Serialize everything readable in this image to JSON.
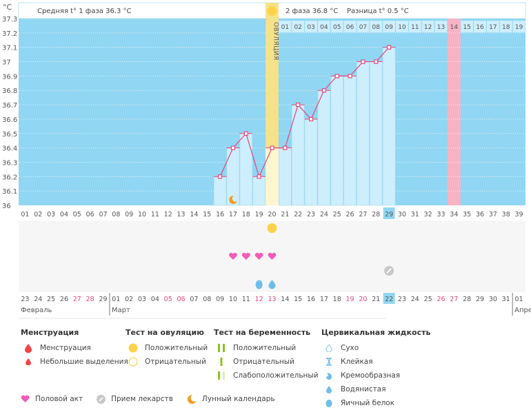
{
  "header": {
    "unit": "°C",
    "phase1_label": "Средняя t° 1 фаза 36.3 °C",
    "phase2_label": "2 фаза 36.8 °C",
    "diff_label": "Разница t° 0.5 °C",
    "ovulation_label": "ОВУЛЯЦИЯ"
  },
  "chart_data": {
    "type": "line",
    "title": "",
    "xlabel": "",
    "ylabel": "°C",
    "ylim": [
      36.0,
      37.3
    ],
    "y_ticks": [
      "37.3",
      "37.2",
      "37.1",
      "37",
      "36.9",
      "36.8",
      "36.7",
      "36.6",
      "36.5",
      "36.4",
      "36.3",
      "36.2",
      "36.1",
      "36"
    ],
    "cycle_days": [
      "01",
      "02",
      "03",
      "04",
      "05",
      "06",
      "07",
      "08",
      "09",
      "10",
      "11",
      "12",
      "13",
      "14",
      "15",
      "16",
      "17",
      "18",
      "19",
      "20",
      "21",
      "22",
      "23",
      "24",
      "25",
      "26",
      "27",
      "28",
      "29",
      "30",
      "31",
      "32",
      "33",
      "34",
      "35",
      "36",
      "37",
      "38",
      "39"
    ],
    "phase2_days": [
      "01",
      "02",
      "03",
      "04",
      "05",
      "06",
      "07",
      "08",
      "09",
      "10",
      "11",
      "12",
      "13",
      "14",
      "15",
      "16",
      "17",
      "18",
      "19"
    ],
    "calendar_dates": [
      "23",
      "24",
      "25",
      "26",
      "27",
      "28",
      "29",
      "01",
      "02",
      "03",
      "04",
      "05",
      "06",
      "07",
      "08",
      "09",
      "10",
      "11",
      "12",
      "13",
      "14",
      "15",
      "16",
      "17",
      "18",
      "19",
      "20",
      "21",
      "22",
      "23",
      "24",
      "25",
      "26",
      "27",
      "28",
      "29",
      "30",
      "31",
      "01"
    ],
    "weekend_dates_idx": [
      4,
      5,
      11,
      12,
      18,
      19,
      25,
      26,
      32,
      33
    ],
    "months": [
      {
        "label": "Февраль",
        "start_idx": 0
      },
      {
        "label": "Март",
        "start_idx": 7
      },
      {
        "label": "Апре",
        "start_idx": 38
      }
    ],
    "series": [
      {
        "name": "Базальная температура",
        "color": "#e8457a",
        "points": [
          {
            "day": 16,
            "value": 36.2
          },
          {
            "day": 17,
            "value": 36.4
          },
          {
            "day": 18,
            "value": 36.5
          },
          {
            "day": 19,
            "value": 36.2
          },
          {
            "day": 20,
            "value": 36.4
          },
          {
            "day": 21,
            "value": 36.4
          },
          {
            "day": 22,
            "value": 36.7
          },
          {
            "day": 23,
            "value": 36.6
          },
          {
            "day": 24,
            "value": 36.8
          },
          {
            "day": 25,
            "value": 36.9
          },
          {
            "day": 26,
            "value": 36.9
          },
          {
            "day": 27,
            "value": 37.0
          },
          {
            "day": 28,
            "value": 37.0
          },
          {
            "day": 29,
            "value": 37.1
          }
        ]
      }
    ],
    "ovulation_day": 20,
    "today_day": 29,
    "expected_period_day": 34,
    "markers": {
      "moon_days": [
        17
      ],
      "ovulation_test_positive_days": [
        20
      ],
      "intercourse_days": [
        17,
        18,
        19,
        20
      ],
      "medicine_days": [
        29
      ],
      "cervical_fluid": [
        {
          "day": 19,
          "type": "Яичный белок"
        },
        {
          "day": 20,
          "type": "Водянистая"
        }
      ]
    },
    "colors": {
      "background": "#91d6f2",
      "bar": "#cdeefc",
      "ovulation": "#f5e28a",
      "ovulation_low": "#fdf6cf",
      "expected_period": "#f7b3c6",
      "line": "#e8457a",
      "today": "#91d6f2",
      "weekend_text": "#e8457a"
    }
  },
  "legend": {
    "groups": [
      {
        "title": "Менструация",
        "items": [
          {
            "icon": "drop-large-red-icon",
            "label": "Менструация"
          },
          {
            "icon": "drop-small-red-icon",
            "label": "Небольшие выделения"
          }
        ]
      },
      {
        "title": "Тест на овуляцию",
        "items": [
          {
            "icon": "circle-filled-yellow-icon",
            "label": "Положительный"
          },
          {
            "icon": "circle-outline-yellow-icon",
            "label": "Отрицательный"
          }
        ]
      },
      {
        "title": "Тест на беременность",
        "items": [
          {
            "icon": "two-green-bars-icon",
            "label": "Положительный"
          },
          {
            "icon": "one-green-bar-icon",
            "label": "Отрицательный"
          },
          {
            "icon": "faint-green-bars-icon",
            "label": "Слабоположительный"
          }
        ]
      },
      {
        "title": "Цервикальная жидкость",
        "items": [
          {
            "icon": "drop-outline-icon",
            "label": "Сухо"
          },
          {
            "icon": "hourglass-icon",
            "label": "Клейкая"
          },
          {
            "icon": "drop-cream-icon",
            "label": "Кремообразная"
          },
          {
            "icon": "drop-watery-icon",
            "label": "Водянистая"
          },
          {
            "icon": "egg-white-icon",
            "label": "Яичный белок"
          }
        ]
      }
    ],
    "bottom": [
      {
        "icon": "heart-icon",
        "label": "Половой акт"
      },
      {
        "icon": "pill-icon",
        "label": "Прием лекарств"
      },
      {
        "icon": "moon-icon",
        "label": "Лунный календарь"
      }
    ]
  }
}
